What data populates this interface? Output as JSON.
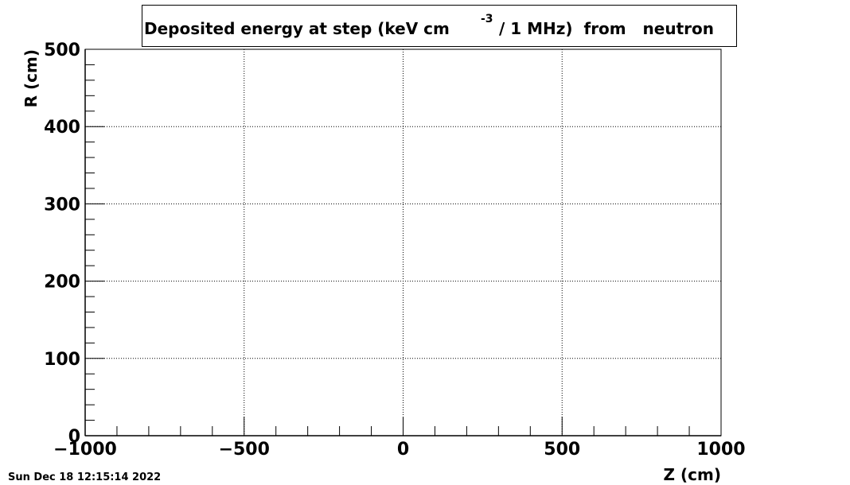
{
  "chart_data": {
    "type": "heatmap",
    "title": "Deposited energy at step (keV cm",
    "title_superscript": "-3",
    "title_end": "/ 1 MHz)  from   neutron",
    "x_label": "Z (cm)",
    "y_label": "R (cm)",
    "xlim": [
      -1000,
      1000
    ],
    "ylim": [
      0,
      500
    ],
    "xticks": [
      {
        "value": -1000,
        "label": "−1000"
      },
      {
        "value": -500,
        "label": "−500"
      },
      0,
      500,
      1000
    ],
    "yticks": [
      0,
      100,
      200,
      300,
      400,
      500
    ],
    "grid": true,
    "timestamp": "Sun Dec 18 12:15:14 2022"
  }
}
